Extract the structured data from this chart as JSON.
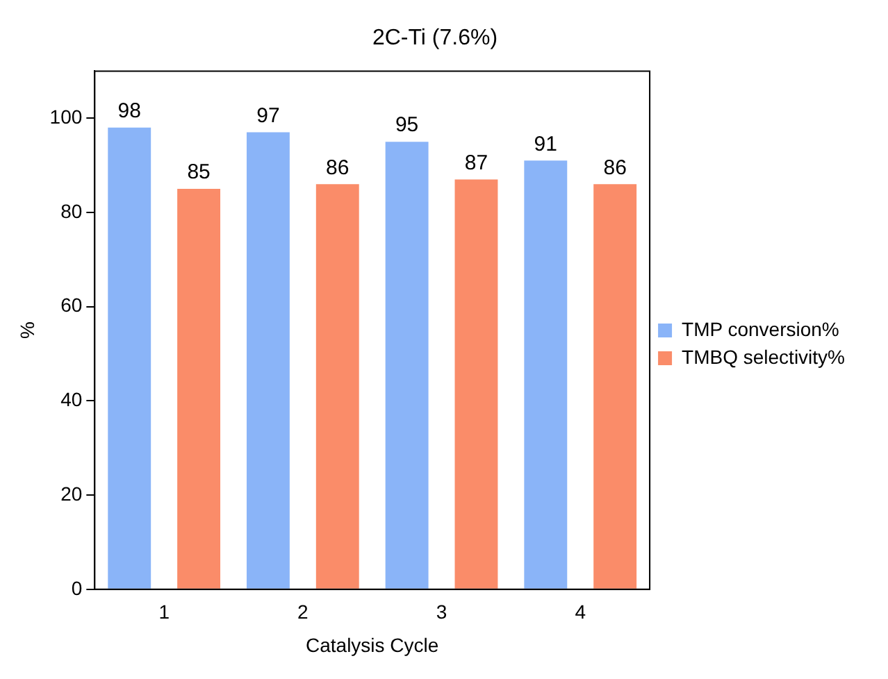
{
  "chart_data": {
    "type": "bar",
    "title": "2C-Ti (7.6%)",
    "xlabel": "Catalysis Cycle",
    "ylabel": "%",
    "categories": [
      "1",
      "2",
      "3",
      "4"
    ],
    "series": [
      {
        "name": "TMP conversion%",
        "color": "#8ab4f8",
        "values": [
          98,
          97,
          95,
          91
        ]
      },
      {
        "name": "TMBQ selectivity%",
        "color": "#fa8c69",
        "values": [
          85,
          86,
          87,
          86
        ]
      }
    ],
    "ylim": [
      0,
      110
    ],
    "yticks": [
      0,
      20,
      40,
      60,
      80,
      100
    ],
    "grid": false,
    "legend": "right",
    "data_labels": true
  }
}
